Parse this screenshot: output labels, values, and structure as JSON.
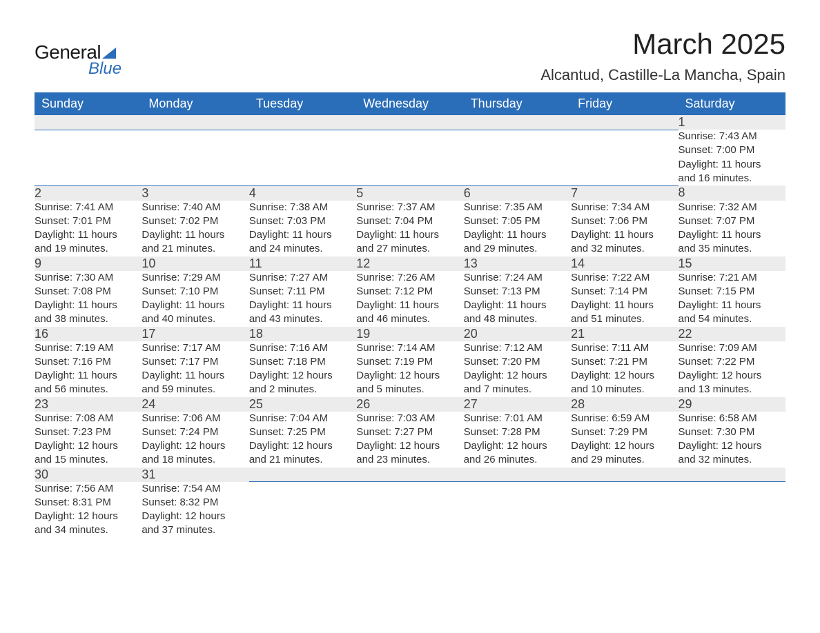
{
  "logo": {
    "text1": "General",
    "text2": "Blue",
    "triangle_color": "#2a6db8"
  },
  "header": {
    "title": "March 2025",
    "subtitle": "Alcantud, Castille-La Mancha, Spain"
  },
  "colors": {
    "header_bg": "#2a6db8",
    "header_text": "#ffffff",
    "daynum_bg": "#ececec",
    "border": "#2a6db8",
    "body_text": "#333333",
    "title_text": "#222222"
  },
  "typography": {
    "title_fontsize": 42,
    "subtitle_fontsize": 22,
    "dayheader_fontsize": 18,
    "daynum_fontsize": 18,
    "detail_fontsize": 15
  },
  "weekdays": [
    "Sunday",
    "Monday",
    "Tuesday",
    "Wednesday",
    "Thursday",
    "Friday",
    "Saturday"
  ],
  "weeks": [
    [
      null,
      null,
      null,
      null,
      null,
      null,
      {
        "day": "1",
        "sunrise": "Sunrise: 7:43 AM",
        "sunset": "Sunset: 7:00 PM",
        "daylight1": "Daylight: 11 hours",
        "daylight2": "and 16 minutes."
      }
    ],
    [
      {
        "day": "2",
        "sunrise": "Sunrise: 7:41 AM",
        "sunset": "Sunset: 7:01 PM",
        "daylight1": "Daylight: 11 hours",
        "daylight2": "and 19 minutes."
      },
      {
        "day": "3",
        "sunrise": "Sunrise: 7:40 AM",
        "sunset": "Sunset: 7:02 PM",
        "daylight1": "Daylight: 11 hours",
        "daylight2": "and 21 minutes."
      },
      {
        "day": "4",
        "sunrise": "Sunrise: 7:38 AM",
        "sunset": "Sunset: 7:03 PM",
        "daylight1": "Daylight: 11 hours",
        "daylight2": "and 24 minutes."
      },
      {
        "day": "5",
        "sunrise": "Sunrise: 7:37 AM",
        "sunset": "Sunset: 7:04 PM",
        "daylight1": "Daylight: 11 hours",
        "daylight2": "and 27 minutes."
      },
      {
        "day": "6",
        "sunrise": "Sunrise: 7:35 AM",
        "sunset": "Sunset: 7:05 PM",
        "daylight1": "Daylight: 11 hours",
        "daylight2": "and 29 minutes."
      },
      {
        "day": "7",
        "sunrise": "Sunrise: 7:34 AM",
        "sunset": "Sunset: 7:06 PM",
        "daylight1": "Daylight: 11 hours",
        "daylight2": "and 32 minutes."
      },
      {
        "day": "8",
        "sunrise": "Sunrise: 7:32 AM",
        "sunset": "Sunset: 7:07 PM",
        "daylight1": "Daylight: 11 hours",
        "daylight2": "and 35 minutes."
      }
    ],
    [
      {
        "day": "9",
        "sunrise": "Sunrise: 7:30 AM",
        "sunset": "Sunset: 7:08 PM",
        "daylight1": "Daylight: 11 hours",
        "daylight2": "and 38 minutes."
      },
      {
        "day": "10",
        "sunrise": "Sunrise: 7:29 AM",
        "sunset": "Sunset: 7:10 PM",
        "daylight1": "Daylight: 11 hours",
        "daylight2": "and 40 minutes."
      },
      {
        "day": "11",
        "sunrise": "Sunrise: 7:27 AM",
        "sunset": "Sunset: 7:11 PM",
        "daylight1": "Daylight: 11 hours",
        "daylight2": "and 43 minutes."
      },
      {
        "day": "12",
        "sunrise": "Sunrise: 7:26 AM",
        "sunset": "Sunset: 7:12 PM",
        "daylight1": "Daylight: 11 hours",
        "daylight2": "and 46 minutes."
      },
      {
        "day": "13",
        "sunrise": "Sunrise: 7:24 AM",
        "sunset": "Sunset: 7:13 PM",
        "daylight1": "Daylight: 11 hours",
        "daylight2": "and 48 minutes."
      },
      {
        "day": "14",
        "sunrise": "Sunrise: 7:22 AM",
        "sunset": "Sunset: 7:14 PM",
        "daylight1": "Daylight: 11 hours",
        "daylight2": "and 51 minutes."
      },
      {
        "day": "15",
        "sunrise": "Sunrise: 7:21 AM",
        "sunset": "Sunset: 7:15 PM",
        "daylight1": "Daylight: 11 hours",
        "daylight2": "and 54 minutes."
      }
    ],
    [
      {
        "day": "16",
        "sunrise": "Sunrise: 7:19 AM",
        "sunset": "Sunset: 7:16 PM",
        "daylight1": "Daylight: 11 hours",
        "daylight2": "and 56 minutes."
      },
      {
        "day": "17",
        "sunrise": "Sunrise: 7:17 AM",
        "sunset": "Sunset: 7:17 PM",
        "daylight1": "Daylight: 11 hours",
        "daylight2": "and 59 minutes."
      },
      {
        "day": "18",
        "sunrise": "Sunrise: 7:16 AM",
        "sunset": "Sunset: 7:18 PM",
        "daylight1": "Daylight: 12 hours",
        "daylight2": "and 2 minutes."
      },
      {
        "day": "19",
        "sunrise": "Sunrise: 7:14 AM",
        "sunset": "Sunset: 7:19 PM",
        "daylight1": "Daylight: 12 hours",
        "daylight2": "and 5 minutes."
      },
      {
        "day": "20",
        "sunrise": "Sunrise: 7:12 AM",
        "sunset": "Sunset: 7:20 PM",
        "daylight1": "Daylight: 12 hours",
        "daylight2": "and 7 minutes."
      },
      {
        "day": "21",
        "sunrise": "Sunrise: 7:11 AM",
        "sunset": "Sunset: 7:21 PM",
        "daylight1": "Daylight: 12 hours",
        "daylight2": "and 10 minutes."
      },
      {
        "day": "22",
        "sunrise": "Sunrise: 7:09 AM",
        "sunset": "Sunset: 7:22 PM",
        "daylight1": "Daylight: 12 hours",
        "daylight2": "and 13 minutes."
      }
    ],
    [
      {
        "day": "23",
        "sunrise": "Sunrise: 7:08 AM",
        "sunset": "Sunset: 7:23 PM",
        "daylight1": "Daylight: 12 hours",
        "daylight2": "and 15 minutes."
      },
      {
        "day": "24",
        "sunrise": "Sunrise: 7:06 AM",
        "sunset": "Sunset: 7:24 PM",
        "daylight1": "Daylight: 12 hours",
        "daylight2": "and 18 minutes."
      },
      {
        "day": "25",
        "sunrise": "Sunrise: 7:04 AM",
        "sunset": "Sunset: 7:25 PM",
        "daylight1": "Daylight: 12 hours",
        "daylight2": "and 21 minutes."
      },
      {
        "day": "26",
        "sunrise": "Sunrise: 7:03 AM",
        "sunset": "Sunset: 7:27 PM",
        "daylight1": "Daylight: 12 hours",
        "daylight2": "and 23 minutes."
      },
      {
        "day": "27",
        "sunrise": "Sunrise: 7:01 AM",
        "sunset": "Sunset: 7:28 PM",
        "daylight1": "Daylight: 12 hours",
        "daylight2": "and 26 minutes."
      },
      {
        "day": "28",
        "sunrise": "Sunrise: 6:59 AM",
        "sunset": "Sunset: 7:29 PM",
        "daylight1": "Daylight: 12 hours",
        "daylight2": "and 29 minutes."
      },
      {
        "day": "29",
        "sunrise": "Sunrise: 6:58 AM",
        "sunset": "Sunset: 7:30 PM",
        "daylight1": "Daylight: 12 hours",
        "daylight2": "and 32 minutes."
      }
    ],
    [
      {
        "day": "30",
        "sunrise": "Sunrise: 7:56 AM",
        "sunset": "Sunset: 8:31 PM",
        "daylight1": "Daylight: 12 hours",
        "daylight2": "and 34 minutes."
      },
      {
        "day": "31",
        "sunrise": "Sunrise: 7:54 AM",
        "sunset": "Sunset: 8:32 PM",
        "daylight1": "Daylight: 12 hours",
        "daylight2": "and 37 minutes."
      },
      null,
      null,
      null,
      null,
      null
    ]
  ]
}
